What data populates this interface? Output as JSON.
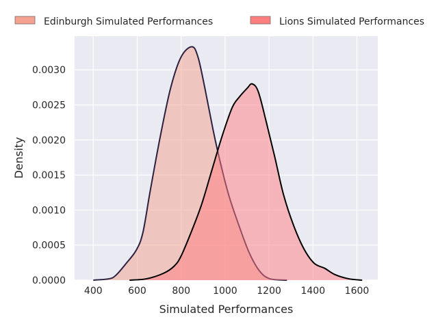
{
  "chart_data": {
    "type": "area",
    "subtype": "kde",
    "title": "",
    "xlabel": "Simulated Performances",
    "ylabel": "Density",
    "xlim": [
      315,
      1695
    ],
    "ylim": [
      0,
      0.00348
    ],
    "xticks": [
      400,
      600,
      800,
      1000,
      1200,
      1400,
      1600
    ],
    "xtick_labels": [
      "400",
      "600",
      "800",
      "1000",
      "1200",
      "1400",
      "1600"
    ],
    "yticks": [
      0,
      0.0005,
      0.001,
      0.0015,
      0.002,
      0.0025,
      0.003
    ],
    "ytick_labels": [
      "0.0000",
      "0.0005",
      "0.0010",
      "0.0015",
      "0.0020",
      "0.0025",
      "0.0030"
    ],
    "grid": true,
    "legend_position": "top",
    "series": [
      {
        "name": "Edinburgh Simulated Performances",
        "fill": "#f4a08c",
        "line": "#2a2040",
        "legend_color": "#f4a190",
        "x": [
          400,
          472,
          503,
          550,
          596,
          626,
          659,
          705,
          752,
          799,
          849,
          877,
          908,
          945,
          976,
          1016,
          1063,
          1110,
          1157,
          1204,
          1282
        ],
        "y": [
          0,
          2e-05,
          7e-05,
          0.00024,
          0.00043,
          0.00068,
          0.00127,
          0.00205,
          0.00274,
          0.00318,
          0.00333,
          0.00318,
          0.00274,
          0.00215,
          0.00171,
          0.00122,
          0.00078,
          0.00039,
          0.00013,
          2e-05,
          0
        ]
      },
      {
        "name": "Lions Simulated Performances",
        "fill": "#ff7b82",
        "line": "#000000",
        "legend_color": "#ff7f7f",
        "x": [
          565,
          643,
          721,
          768,
          799,
          845,
          892,
          939,
          986,
          1032,
          1064,
          1101,
          1123,
          1151,
          1188,
          1226,
          1266,
          1312,
          1360,
          1406,
          1453,
          1500,
          1562,
          1624
        ],
        "y": [
          0,
          2e-05,
          0.0001,
          0.0002,
          0.00034,
          0.00068,
          0.00107,
          0.00156,
          0.00205,
          0.00246,
          0.00261,
          0.00274,
          0.0028,
          0.00269,
          0.00225,
          0.00176,
          0.00122,
          0.00078,
          0.00044,
          0.00024,
          0.00017,
          8e-05,
          2e-05,
          0
        ]
      }
    ]
  }
}
